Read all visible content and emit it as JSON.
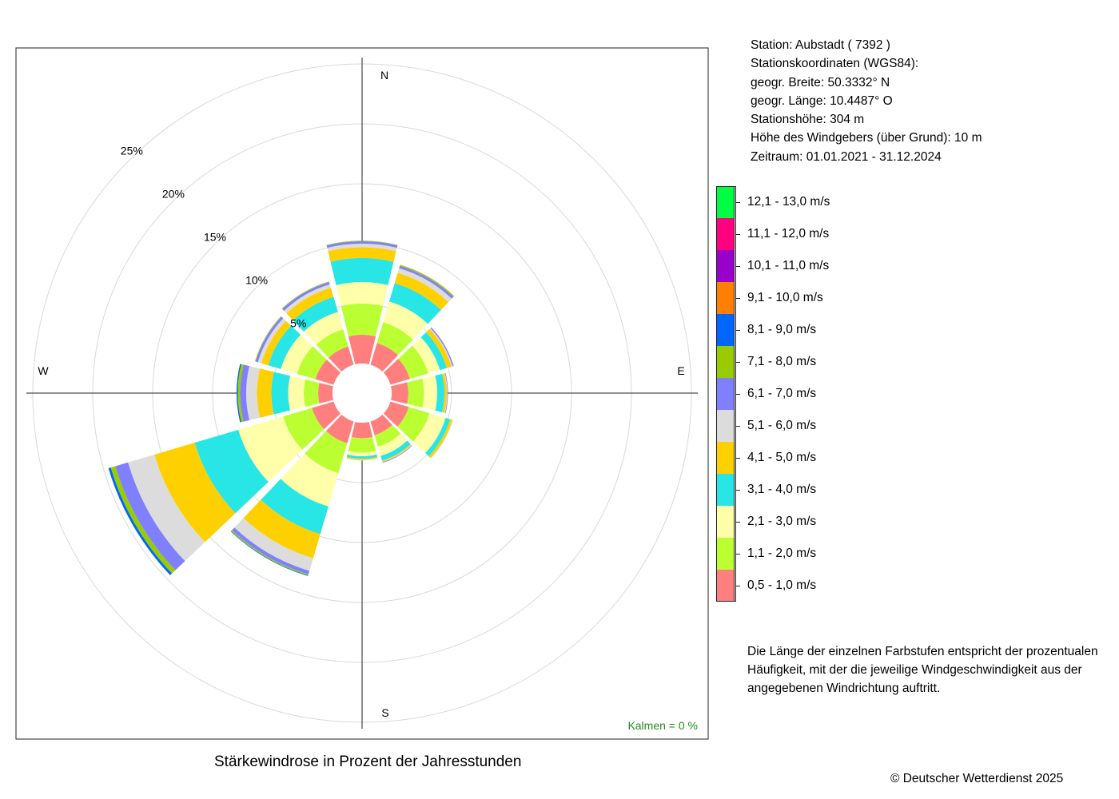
{
  "station": {
    "line1": "Station:  Aubstadt  ( 7392 )",
    "line2": "Stationskoordinaten (WGS84):",
    "line3": "geogr. Breite: 50.3332° N",
    "line4": "geogr. Länge: 10.4487° O",
    "line5": "Stationshöhe: 304 m",
    "line6": "Höhe des Windgebers (über Grund): 10 m",
    "line7": "Zeitraum: 01.01.2021 - 31.12.2024"
  },
  "description": {
    "line1": "Die Länge der einzelnen Farbstufen entspricht der prozentualen",
    "line2": "Häufigkeit, mit der die jeweilige Windgeschwindigkeit aus der",
    "line3": "angegebenen Windrichtung auftritt."
  },
  "caption": "Stärkewindrose in Prozent der Jahresstunden",
  "copyright": "© Deutscher Wetterdienst  2025",
  "chart_data": {
    "type": "windrose",
    "title": "Stärkewindrose in Prozent der Jahresstunden",
    "calm_label": "Kalmen  =  0 %",
    "compass": {
      "north": "N",
      "east": "E",
      "south": "S",
      "west": "W"
    },
    "rings": [
      5,
      10,
      15,
      20,
      25
    ],
    "ring_labels": [
      "5%",
      "10%",
      "15%",
      "20%",
      "25%"
    ],
    "directions_deg": [
      0,
      30,
      60,
      90,
      120,
      150,
      180,
      210,
      240,
      270,
      300,
      330
    ],
    "classes": [
      {
        "label": "0,5 - 1,0 m/s",
        "color": "#ff7f7f"
      },
      {
        "label": "1,1 - 2,0 m/s",
        "color": "#bbff33"
      },
      {
        "label": "2,1 - 3,0 m/s",
        "color": "#ffffaa"
      },
      {
        "label": "3,1 - 4,0 m/s",
        "color": "#28e6e6"
      },
      {
        "label": "4,1 - 5,0 m/s",
        "color": "#ffd000"
      },
      {
        "label": "5,1 - 6,0 m/s",
        "color": "#dcdcdc"
      },
      {
        "label": "6,1 - 7,0 m/s",
        "color": "#8080ff"
      },
      {
        "label": "7,1 - 8,0 m/s",
        "color": "#99cc00"
      },
      {
        "label": "8,1 - 9,0 m/s",
        "color": "#0066ff"
      },
      {
        "label": "9,1 - 10,0 m/s",
        "color": "#ff8000"
      },
      {
        "label": "10,1 - 11,0 m/s",
        "color": "#9900cc"
      },
      {
        "label": "11,1 - 12,0 m/s",
        "color": "#ff0080"
      },
      {
        "label": "12,1 - 13,0 m/s",
        "color": "#00ff44"
      }
    ],
    "series": [
      {
        "direction": 0,
        "values": [
          2.4,
          2.6,
          1.8,
          2.0,
          0.9,
          0.3,
          0.2,
          0.05,
          0,
          0,
          0,
          0,
          0
        ]
      },
      {
        "direction": 30,
        "values": [
          1.9,
          1.8,
          1.8,
          1.6,
          0.9,
          0.4,
          0.2,
          0.1,
          0,
          0,
          0,
          0,
          0
        ]
      },
      {
        "direction": 60,
        "values": [
          1.7,
          1.6,
          1.0,
          0.6,
          0.4,
          0.1,
          0.1,
          0,
          0,
          0,
          0,
          0,
          0
        ]
      },
      {
        "direction": 90,
        "values": [
          1.4,
          1.3,
          1.1,
          0.6,
          0.2,
          0.05,
          0.05,
          0,
          0,
          0,
          0,
          0,
          0
        ]
      },
      {
        "direction": 120,
        "values": [
          1.6,
          1.8,
          1.4,
          0.4,
          0.2,
          0.05,
          0,
          0,
          0,
          0,
          0,
          0,
          0
        ]
      },
      {
        "direction": 150,
        "values": [
          1.2,
          1.0,
          0.8,
          0.4,
          0.1,
          0.05,
          0.05,
          0,
          0,
          0,
          0,
          0,
          0
        ]
      },
      {
        "direction": 180,
        "values": [
          1.3,
          1.2,
          0.3,
          0.2,
          0.1,
          0.05,
          0,
          0,
          0,
          0,
          0,
          0,
          0
        ]
      },
      {
        "direction": 210,
        "values": [
          1.9,
          2.6,
          2.9,
          2.4,
          2.1,
          1.1,
          0.3,
          0.1,
          0.05,
          0,
          0,
          0,
          0
        ]
      },
      {
        "direction": 240,
        "values": [
          1.9,
          2.5,
          3.9,
          3.8,
          3.5,
          2.3,
          1.1,
          0.4,
          0.2,
          0,
          0,
          0,
          0
        ]
      },
      {
        "direction": 270,
        "values": [
          1.2,
          1.2,
          1.3,
          1.4,
          1.2,
          0.9,
          0.5,
          0.2,
          0.1,
          0,
          0,
          0,
          0
        ]
      },
      {
        "direction": 300,
        "values": [
          1.6,
          1.6,
          1.4,
          1.1,
          0.6,
          0.3,
          0.2,
          0.05,
          0,
          0,
          0,
          0,
          0
        ]
      },
      {
        "direction": 330,
        "values": [
          1.6,
          1.5,
          1.5,
          1.3,
          0.8,
          0.3,
          0.2,
          0.05,
          0,
          0,
          0,
          0,
          0
        ]
      }
    ],
    "legend_order": "top-to-bottom highest class first",
    "legend_placement": "right",
    "grid": true
  }
}
